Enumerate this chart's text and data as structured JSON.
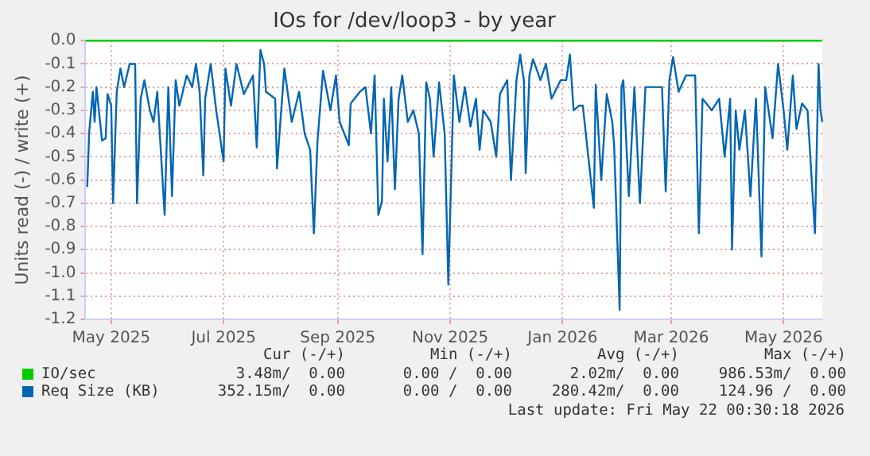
{
  "chart_data": {
    "type": "line",
    "title": "IOs for /dev/loop3 - by year",
    "ylabel": "Units read (-) / write (+)",
    "xlim": [
      "2025-04-17",
      "2026-05-22"
    ],
    "xticks": [
      {
        "value": "2025-05-01",
        "label": "May 2025"
      },
      {
        "value": "2025-07-01",
        "label": "Jul 2025"
      },
      {
        "value": "2025-09-01",
        "label": "Sep 2025"
      },
      {
        "value": "2025-11-01",
        "label": "Nov 2025"
      },
      {
        "value": "2026-01-01",
        "label": "Jan 2026"
      },
      {
        "value": "2026-03-01",
        "label": "Mar 2026"
      },
      {
        "value": "2026-05-01",
        "label": "May 2026"
      }
    ],
    "ylim": [
      -1.2,
      0
    ],
    "yticks": [
      {
        "value": 0,
        "label": "0.0"
      },
      {
        "value": -0.1,
        "label": "-0.1"
      },
      {
        "value": -0.2,
        "label": "-0.2"
      },
      {
        "value": -0.3,
        "label": "-0.3"
      },
      {
        "value": -0.4,
        "label": "-0.4"
      },
      {
        "value": -0.5,
        "label": "-0.5"
      },
      {
        "value": -0.6,
        "label": "-0.6"
      },
      {
        "value": -0.7,
        "label": "-0.7"
      },
      {
        "value": -0.8,
        "label": "-0.8"
      },
      {
        "value": -0.9,
        "label": "-0.9"
      },
      {
        "value": -1.0,
        "label": "-1.0"
      },
      {
        "value": -1.1,
        "label": "-1.1"
      },
      {
        "value": -1.2,
        "label": "-1.2"
      }
    ],
    "grid": true,
    "legend": "bottom",
    "series": [
      {
        "name": "IO/sec",
        "color": "#00cc00",
        "x": [
          "2025-04-17",
          "2026-05-22"
        ],
        "values": [
          0,
          0
        ]
      },
      {
        "name": "Req Size (KB)",
        "color": "#0066b3",
        "x": [
          "2025-04-18",
          "2025-04-19",
          "2025-04-21",
          "2025-04-22",
          "2025-04-23",
          "2025-04-26",
          "2025-04-28",
          "2025-04-29",
          "2025-05-01",
          "2025-05-02",
          "2025-05-04",
          "2025-05-06",
          "2025-05-08",
          "2025-05-11",
          "2025-05-14",
          "2025-05-15",
          "2025-05-17",
          "2025-05-19",
          "2025-05-22",
          "2025-05-24",
          "2025-05-26",
          "2025-05-30",
          "2025-06-01",
          "2025-06-03",
          "2025-06-05",
          "2025-06-07",
          "2025-06-11",
          "2025-06-14",
          "2025-06-16",
          "2025-06-18",
          "2025-06-20",
          "2025-06-21",
          "2025-06-24",
          "2025-06-27",
          "2025-07-01",
          "2025-07-02",
          "2025-07-05",
          "2025-07-08",
          "2025-07-12",
          "2025-07-17",
          "2025-07-19",
          "2025-07-21",
          "2025-07-23",
          "2025-07-24",
          "2025-07-29",
          "2025-07-30",
          "2025-08-01",
          "2025-08-03",
          "2025-08-07",
          "2025-08-11",
          "2025-08-14",
          "2025-08-17",
          "2025-08-19",
          "2025-08-21",
          "2025-08-24",
          "2025-08-28",
          "2025-08-31",
          "2025-09-02",
          "2025-09-07",
          "2025-09-08",
          "2025-09-13",
          "2025-09-16",
          "2025-09-19",
          "2025-09-21",
          "2025-09-23",
          "2025-09-25",
          "2025-09-26",
          "2025-09-28",
          "2025-09-30",
          "2025-10-02",
          "2025-10-04",
          "2025-10-06",
          "2025-10-09",
          "2025-10-12",
          "2025-10-15",
          "2025-10-17",
          "2025-10-19",
          "2025-10-21",
          "2025-10-23",
          "2025-10-26",
          "2025-10-29",
          "2025-10-31",
          "2025-11-03",
          "2025-11-06",
          "2025-11-09",
          "2025-11-12",
          "2025-11-15",
          "2025-11-17",
          "2025-11-19",
          "2025-11-23",
          "2025-11-26",
          "2025-11-28",
          "2025-12-02",
          "2025-12-04",
          "2025-12-07",
          "2025-12-09",
          "2025-12-11",
          "2025-12-12",
          "2025-12-14",
          "2025-12-16",
          "2025-12-20",
          "2025-12-23",
          "2025-12-26",
          "2025-12-31",
          "2026-01-03",
          "2026-01-05",
          "2026-01-07",
          "2026-01-10",
          "2026-01-12",
          "2026-01-18",
          "2026-01-19",
          "2026-01-22",
          "2026-01-25",
          "2026-01-28",
          "2026-01-29",
          "2026-02-01",
          "2026-02-02",
          "2026-02-03",
          "2026-02-06",
          "2026-02-09",
          "2026-02-12",
          "2026-02-15",
          "2026-02-19",
          "2026-02-24",
          "2026-02-26",
          "2026-02-28",
          "2026-03-02",
          "2026-03-05",
          "2026-03-09",
          "2026-03-14",
          "2026-03-16",
          "2026-03-18",
          "2026-03-23",
          "2026-03-27",
          "2026-03-30",
          "2026-04-02",
          "2026-04-03",
          "2026-04-05",
          "2026-04-07",
          "2026-04-10",
          "2026-04-13",
          "2026-04-16",
          "2026-04-19",
          "2026-04-21",
          "2026-04-25",
          "2026-04-28",
          "2026-05-01",
          "2026-05-03",
          "2026-05-06",
          "2026-05-08",
          "2026-05-11",
          "2026-05-14",
          "2026-05-18",
          "2026-05-20",
          "2026-05-21",
          "2026-05-22"
        ],
        "values": [
          -0.63,
          -0.4,
          -0.22,
          -0.35,
          -0.2,
          -0.43,
          -0.42,
          -0.23,
          -0.28,
          -0.7,
          -0.22,
          -0.12,
          -0.2,
          -0.1,
          -0.1,
          -0.7,
          -0.25,
          -0.17,
          -0.3,
          -0.35,
          -0.22,
          -0.75,
          -0.2,
          -0.67,
          -0.17,
          -0.28,
          -0.15,
          -0.2,
          -0.1,
          -0.22,
          -0.58,
          -0.25,
          -0.1,
          -0.3,
          -0.52,
          -0.12,
          -0.28,
          -0.1,
          -0.23,
          -0.15,
          -0.46,
          -0.04,
          -0.1,
          -0.22,
          -0.25,
          -0.55,
          -0.33,
          -0.12,
          -0.35,
          -0.22,
          -0.4,
          -0.47,
          -0.83,
          -0.43,
          -0.13,
          -0.3,
          -0.15,
          -0.35,
          -0.45,
          -0.27,
          -0.22,
          -0.2,
          -0.4,
          -0.15,
          -0.75,
          -0.69,
          -0.25,
          -0.52,
          -0.2,
          -0.64,
          -0.25,
          -0.15,
          -0.35,
          -0.3,
          -0.4,
          -0.92,
          -0.18,
          -0.25,
          -0.5,
          -0.18,
          -0.4,
          -1.05,
          -0.15,
          -0.35,
          -0.2,
          -0.37,
          -0.25,
          -0.47,
          -0.3,
          -0.35,
          -0.5,
          -0.23,
          -0.17,
          -0.6,
          -0.17,
          -0.06,
          -0.17,
          -0.57,
          -0.15,
          -0.08,
          -0.17,
          -0.1,
          -0.25,
          -0.17,
          -0.17,
          -0.06,
          -0.3,
          -0.28,
          -0.28,
          -0.72,
          -0.19,
          -0.6,
          -0.23,
          -0.35,
          -0.45,
          -1.16,
          -0.2,
          -0.17,
          -0.67,
          -0.2,
          -0.7,
          -0.2,
          -0.2,
          -0.2,
          -0.65,
          -0.17,
          -0.07,
          -0.22,
          -0.15,
          -0.15,
          -0.83,
          -0.25,
          -0.3,
          -0.25,
          -0.5,
          -0.25,
          -0.9,
          -0.3,
          -0.47,
          -0.3,
          -0.67,
          -0.25,
          -0.93,
          -0.2,
          -0.42,
          -0.1,
          -0.3,
          -0.47,
          -0.15,
          -0.38,
          -0.27,
          -0.3,
          -0.83,
          -0.1,
          -0.3,
          -0.35
        ]
      }
    ],
    "annotations": [
      "Cur (-/+)",
      "Min (-/+)",
      "Avg (-/+)",
      "Max (-/+)",
      "3.48m/  0.00",
      "0.00 /  0.00",
      "2.02m/  0.00",
      "986.53m/  0.00",
      "352.15m/  0.00",
      "0.00 /  0.00",
      "280.42m/  0.00",
      "124.96 /  0.00",
      "Last update: Fri May 22 00:30:18 2026"
    ]
  }
}
